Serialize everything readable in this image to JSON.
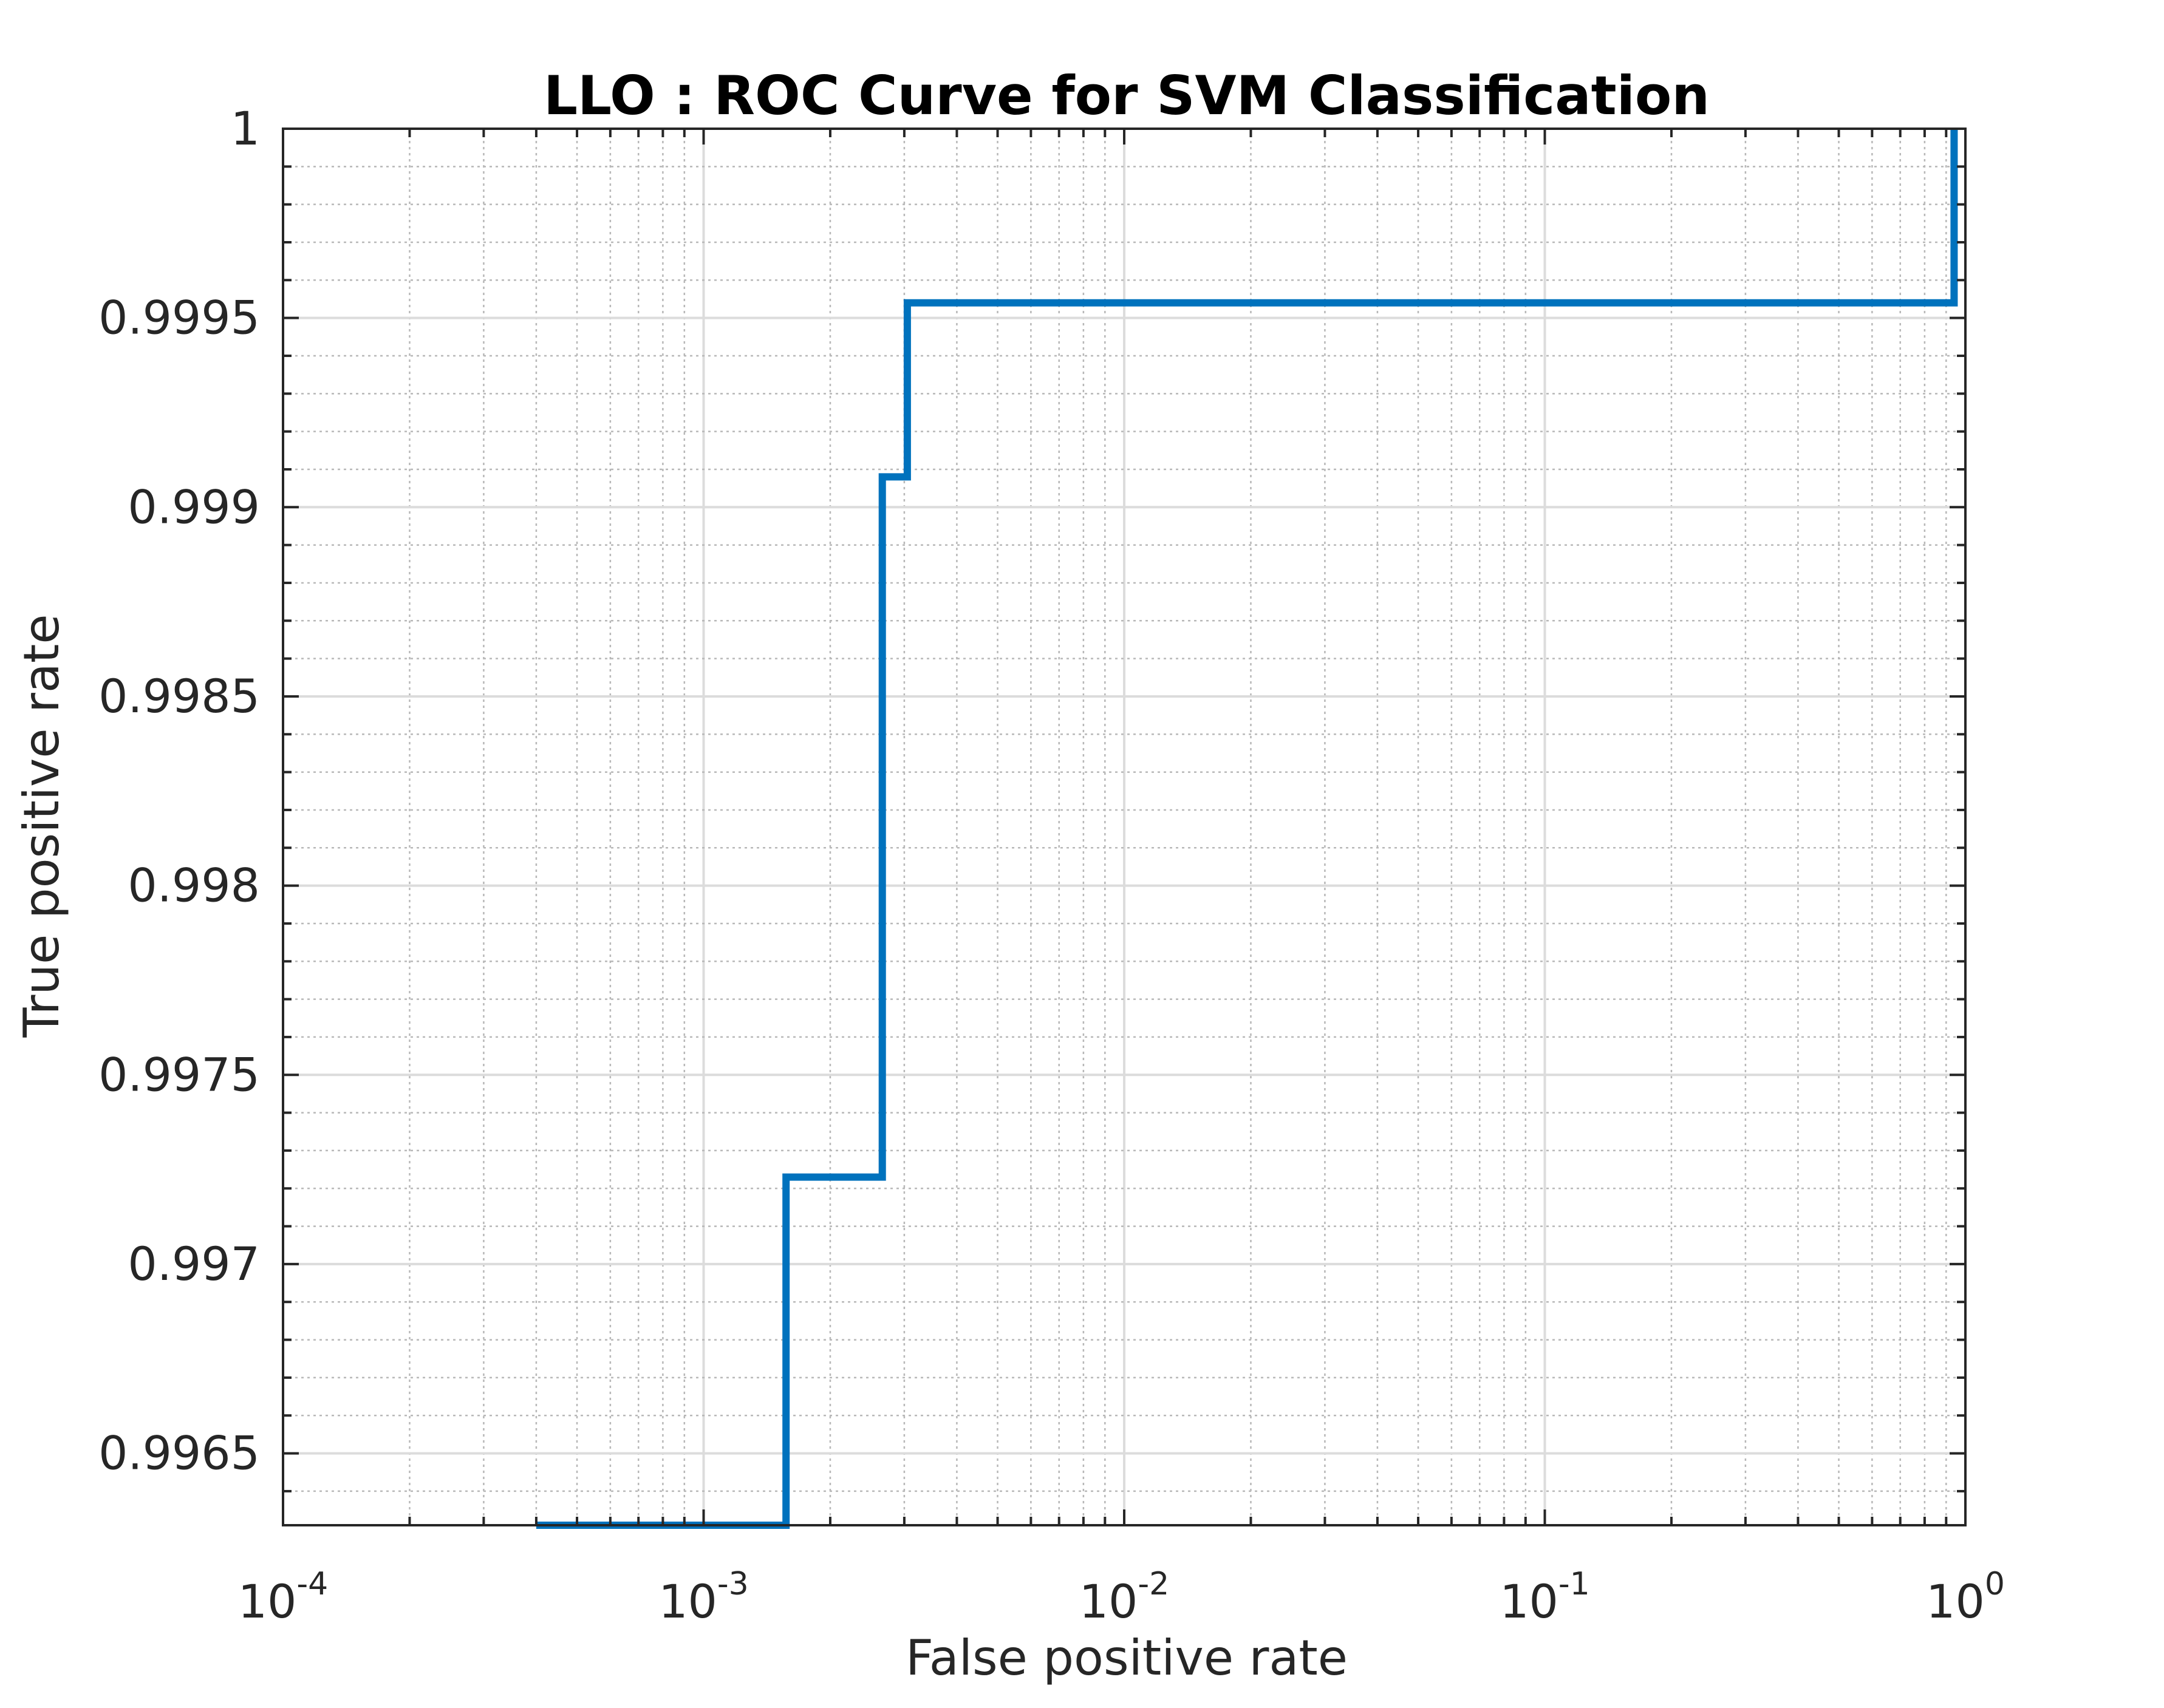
{
  "chart_data": {
    "type": "line",
    "title": "LLO : ROC Curve for SVM Classification",
    "xlabel": "False positive rate",
    "ylabel": "True positive rate",
    "x_scale": "log",
    "xlim": [
      0.0001,
      1
    ],
    "ylim": [
      0.99631,
      1.0
    ],
    "x_ticks": [
      {
        "base": "10",
        "exp": "-4"
      },
      {
        "base": "10",
        "exp": "-3"
      },
      {
        "base": "10",
        "exp": "-2"
      },
      {
        "base": "10",
        "exp": "-1"
      },
      {
        "base": "10",
        "exp": "0"
      }
    ],
    "y_ticks": [
      "0.9965",
      "0.997",
      "0.9975",
      "0.998",
      "0.9985",
      "0.999",
      "0.9995",
      "1"
    ],
    "y_tick_values": [
      0.9965,
      0.997,
      0.9975,
      0.998,
      0.9985,
      0.999,
      0.9995,
      1.0
    ],
    "grid": true,
    "minor_grid": true,
    "step": true,
    "series": [
      {
        "color": "#0072BD",
        "x": [
          0.0004,
          0.00157,
          0.00157,
          0.00266,
          0.00266,
          0.00305,
          0.00305,
          0.94,
          0.94
        ],
        "y": [
          0.99631,
          0.99631,
          0.99723,
          0.99723,
          0.99908,
          0.99908,
          0.99954,
          0.99954,
          1.0
        ]
      }
    ]
  }
}
